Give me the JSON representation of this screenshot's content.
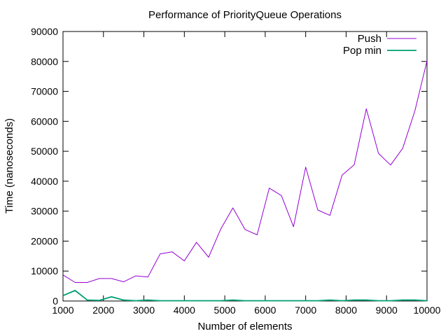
{
  "chart_data": {
    "type": "line",
    "title": "Performance of PriorityQueue Operations",
    "xlabel": "Number of elements",
    "ylabel": "Time (nanoseconds)",
    "xlim": [
      1000,
      10000
    ],
    "ylim": [
      0,
      90000
    ],
    "xticks": [
      1000,
      2000,
      3000,
      4000,
      5000,
      6000,
      7000,
      8000,
      9000,
      10000
    ],
    "yticks": [
      0,
      10000,
      20000,
      30000,
      40000,
      50000,
      60000,
      70000,
      80000,
      90000
    ],
    "grid": false,
    "legend_position": "top-right",
    "x": [
      1000,
      1300,
      1600,
      1900,
      2200,
      2500,
      2800,
      3100,
      3400,
      3700,
      4000,
      4300,
      4600,
      4900,
      5200,
      5500,
      5800,
      6100,
      6400,
      6700,
      7000,
      7300,
      7600,
      7900,
      8200,
      8500,
      8800,
      9100,
      9400,
      9700,
      10000
    ],
    "series": [
      {
        "name": "Push",
        "color": "#9400d3",
        "values": [
          8700,
          6200,
          6200,
          7500,
          7500,
          6400,
          8400,
          8000,
          15700,
          16400,
          13400,
          19600,
          14600,
          24000,
          31100,
          23900,
          22100,
          37700,
          35200,
          24800,
          44700,
          30400,
          28600,
          42000,
          45500,
          64200,
          49300,
          45400,
          51000,
          63500,
          80200
        ]
      },
      {
        "name": "Pop min",
        "color": "#009e73",
        "values": [
          1800,
          3500,
          300,
          200,
          1400,
          300,
          100,
          300,
          100,
          100,
          100,
          100,
          100,
          100,
          300,
          100,
          100,
          100,
          100,
          100,
          100,
          100,
          300,
          100,
          300,
          300,
          100,
          100,
          300,
          300,
          100
        ]
      }
    ]
  }
}
